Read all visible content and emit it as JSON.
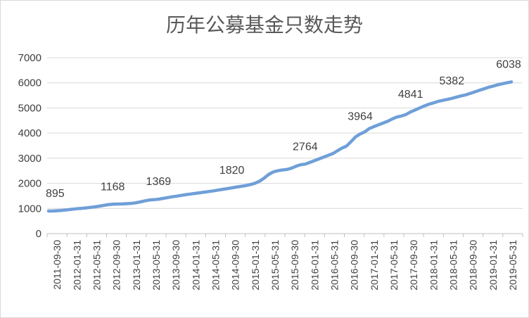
{
  "chart_data": {
    "type": "line",
    "title": "历年公募基金只数走势",
    "xlabel": "",
    "ylabel": "",
    "ylim": [
      0,
      7000
    ],
    "yticks": [
      0,
      1000,
      2000,
      3000,
      4000,
      5000,
      6000,
      7000
    ],
    "grid": true,
    "legend": "none",
    "line_color": "#6f9fd8",
    "x_tick_labels": [
      "2011-09-30",
      "2012-01-31",
      "2012-05-31",
      "2012-09-30",
      "2013-01-31",
      "2013-05-31",
      "2013-09-30",
      "2014-01-31",
      "2014-05-31",
      "2014-09-30",
      "2015-01-31",
      "2015-05-31",
      "2015-09-30",
      "2016-01-31",
      "2016-05-31",
      "2016-09-30",
      "2017-01-31",
      "2017-05-31",
      "2017-09-30",
      "2018-01-31",
      "2018-05-31",
      "2018-09-30",
      "2019-01-31",
      "2019-05-31"
    ],
    "series": [
      {
        "values": [
          895,
          900,
          910,
          925,
          945,
          965,
          985,
          1000,
          1020,
          1040,
          1060,
          1090,
          1120,
          1150,
          1168,
          1175,
          1180,
          1190,
          1200,
          1225,
          1260,
          1300,
          1335,
          1350,
          1369,
          1400,
          1435,
          1465,
          1490,
          1520,
          1550,
          1575,
          1600,
          1625,
          1650,
          1675,
          1700,
          1730,
          1760,
          1790,
          1820,
          1850,
          1880,
          1910,
          1950,
          2000,
          2080,
          2200,
          2350,
          2450,
          2500,
          2530,
          2550,
          2600,
          2680,
          2740,
          2764,
          2830,
          2900,
          2970,
          3040,
          3110,
          3180,
          3290,
          3400,
          3480,
          3660,
          3850,
          3964,
          4050,
          4180,
          4260,
          4330,
          4400,
          4470,
          4560,
          4640,
          4680,
          4740,
          4841,
          4920,
          5000,
          5080,
          5150,
          5200,
          5260,
          5300,
          5340,
          5382,
          5430,
          5480,
          5520,
          5580,
          5640,
          5700,
          5760,
          5820,
          5870,
          5920,
          5960,
          6000,
          6038
        ],
        "labels": [
          {
            "index": 0,
            "text": "895"
          },
          {
            "index": 14,
            "text": "1168"
          },
          {
            "index": 24,
            "text": "1369"
          },
          {
            "index": 40,
            "text": "1820"
          },
          {
            "index": 56,
            "text": "2764"
          },
          {
            "index": 68,
            "text": "3964"
          },
          {
            "index": 79,
            "text": "4841"
          },
          {
            "index": 88,
            "text": "5382"
          },
          {
            "index": 101,
            "text": "6038"
          }
        ]
      }
    ]
  }
}
